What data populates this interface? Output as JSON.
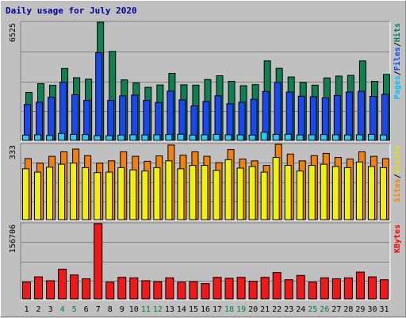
{
  "chart_data": {
    "type": "bar",
    "title": "Daily usage for July 2020",
    "categories": [
      "1",
      "2",
      "3",
      "4",
      "5",
      "6",
      "7",
      "8",
      "9",
      "10",
      "11",
      "12",
      "13",
      "14",
      "15",
      "16",
      "17",
      "18",
      "19",
      "20",
      "21",
      "22",
      "23",
      "24",
      "25",
      "26",
      "27",
      "28",
      "29",
      "30",
      "31"
    ],
    "weekend_days": [
      "4",
      "5",
      "11",
      "12",
      "18",
      "19",
      "25",
      "26"
    ],
    "panels": [
      {
        "id": "top",
        "ymax_label": "6525",
        "ymax": 6525,
        "legend": [
          {
            "text": "Pages",
            "color": "#00c0ff"
          },
          {
            "text": "/",
            "color": "#000000"
          },
          {
            "text": "Files",
            "color": "#0050ff"
          },
          {
            "text": "/",
            "color": "#000000"
          },
          {
            "text": "Hits",
            "color": "#008060"
          }
        ],
        "series": [
          {
            "name": "Hits",
            "color": "#108050",
            "values": [
              2650,
              3130,
              3040,
              3970,
              3460,
              3380,
              6525,
              4910,
              3340,
              3170,
              2930,
              3060,
              3700,
              3070,
              3050,
              3360,
              3570,
              3260,
              3020,
              3080,
              4390,
              3980,
              3500,
              3200,
              3050,
              3450,
              3550,
              3590,
              4390,
              3260,
              3640
            ]
          },
          {
            "name": "Files",
            "color": "#1848f0",
            "values": [
              1980,
              2110,
              2380,
              3210,
              2520,
              2210,
              4840,
              2210,
              2460,
              2500,
              2210,
              2090,
              2720,
              2240,
              1900,
              2150,
              2460,
              2020,
              2110,
              2270,
              2700,
              3200,
              2670,
              2440,
              2410,
              2350,
              2480,
              2670,
              2710,
              2430,
              2540
            ]
          },
          {
            "name": "Pages",
            "color": "#30c8f0",
            "values": [
              290,
              310,
              270,
              380,
              330,
              320,
              260,
              260,
              290,
              310,
              300,
              310,
              320,
              340,
              290,
              310,
              330,
              310,
              300,
              290,
              450,
              330,
              340,
              300,
              310,
              320,
              310,
              300,
              310,
              330,
              300
            ]
          }
        ]
      },
      {
        "id": "middle",
        "ymax_label": "333",
        "ymax": 333,
        "legend": [
          {
            "text": "Sites",
            "color": "#ff8000"
          },
          {
            "text": "/",
            "color": "#000000"
          },
          {
            "text": "Visits",
            "color": "#e0e000"
          }
        ],
        "series": [
          {
            "name": "Visits",
            "color": "#f08010",
            "values": [
              225,
              210,
              232,
              245,
              250,
              230,
              208,
              210,
              230,
              220,
              215,
              230,
              260,
              225,
              240,
              240,
              218,
              265,
              228,
              235,
              210,
              275,
              240,
              215,
              240,
              245,
              235,
              230,
              255,
              235,
              230
            ]
          },
          {
            "name": "Sites",
            "color": "#f0f010",
            "values": [
              270,
              250,
              280,
              300,
              312,
              283,
              250,
              260,
              300,
              280,
              258,
              282,
              330,
              285,
              300,
              280,
              252,
              310,
              268,
              260,
              240,
              333,
              290,
              260,
              283,
              293,
              275,
              268,
              300,
              280,
              270
            ]
          }
        ]
      },
      {
        "id": "bottom",
        "ymax_label": "156706",
        "ymax": 156706,
        "legend": [
          {
            "text": "KBytes",
            "color": "#ff0000"
          }
        ],
        "series": [
          {
            "name": "KBytes",
            "color": "#f01818",
            "values": [
              35000,
              46000,
              38000,
              62000,
              50000,
              42000,
              156706,
              35000,
              45000,
              44000,
              38000,
              36000,
              44000,
              35000,
              36000,
              32000,
              45000,
              43000,
              45000,
              37000,
              45000,
              55000,
              40000,
              49000,
              35000,
              44000,
              42000,
              44000,
              56000,
              46000,
              40000
            ]
          }
        ]
      }
    ]
  }
}
